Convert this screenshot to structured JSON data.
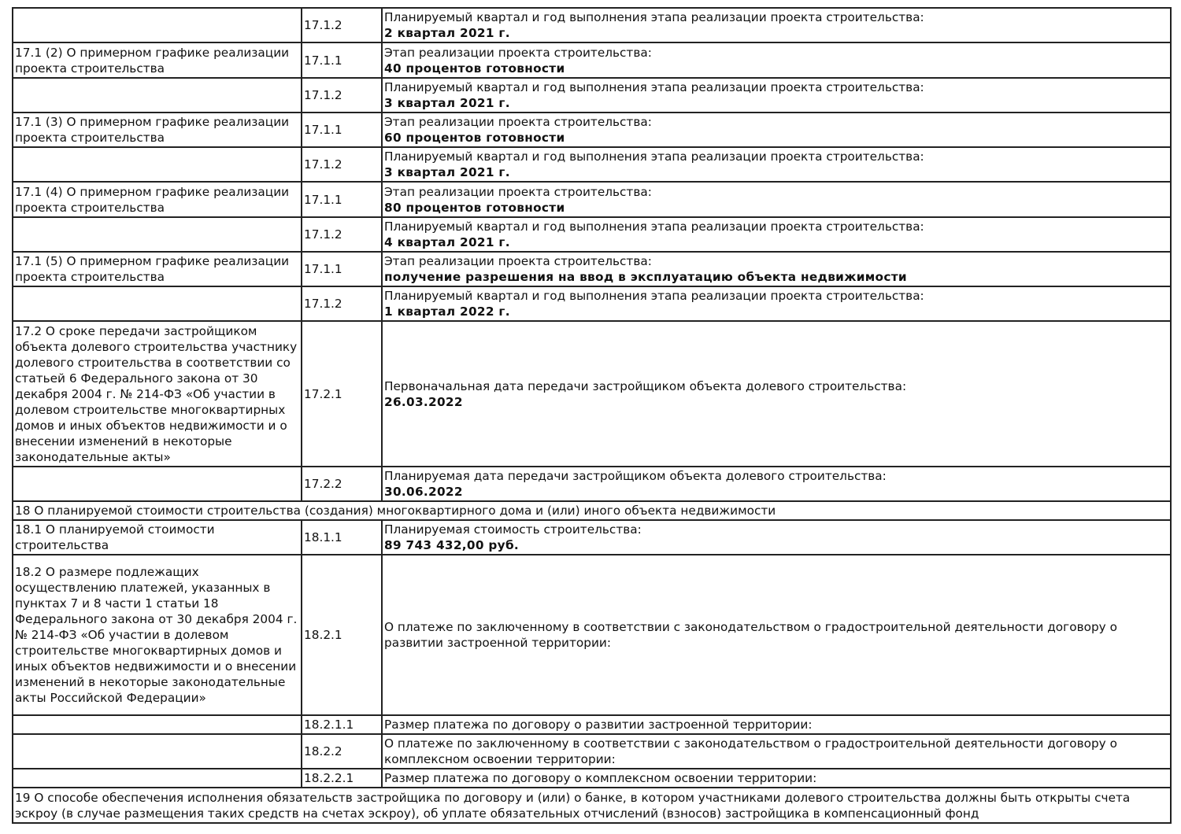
{
  "rows": [
    {
      "section": "",
      "code": "17.1.2",
      "label": "Планируемый квартал и год выполнения этапа реализации проекта строительства:",
      "value": "2 квартал 2021 г."
    },
    {
      "section": "17.1 (2) О примерном графике реализации проекта строительства",
      "code": "17.1.1",
      "label": "Этап реализации проекта строительства:",
      "value": "40 процентов готовности"
    },
    {
      "section": "",
      "code": "17.1.2",
      "label": "Планируемый квартал и год выполнения этапа реализации проекта строительства:",
      "value": "3 квартал 2021 г."
    },
    {
      "section": "17.1 (3) О примерном графике реализации проекта строительства",
      "code": "17.1.1",
      "label": "Этап реализации проекта строительства:",
      "value": "60 процентов готовности"
    },
    {
      "section": "",
      "code": "17.1.2",
      "label": "Планируемый квартал и год выполнения этапа реализации проекта строительства:",
      "value": "3 квартал 2021 г."
    },
    {
      "section": "17.1 (4) О примерном графике реализации проекта строительства",
      "code": "17.1.1",
      "label": "Этап реализации проекта строительства:",
      "value": "80 процентов готовности"
    },
    {
      "section": "",
      "code": "17.1.2",
      "label": "Планируемый квартал и год выполнения этапа реализации проекта строительства:",
      "value": "4 квартал 2021 г."
    },
    {
      "section": "17.1 (5) О примерном графике реализации проекта строительства",
      "code": "17.1.1",
      "label": "Этап реализации проекта строительства:",
      "value": "получение разрешения на ввод в эксплуатацию объекта недвижимости"
    },
    {
      "section": "",
      "code": "17.1.2",
      "label": "Планируемый квартал и год выполнения этапа реализации проекта строительства:",
      "value": "1 квартал 2022 г."
    },
    {
      "section": "17.2 О сроке передачи застройщиком объекта долевого строительства участнику долевого строительства в соответствии со статьей 6 Федерального закона от 30 декабря 2004 г. № 214-ФЗ «Об участии в долевом строительстве многоквартирных домов и иных объектов недвижимости и о внесении изменений в некоторые законодательные акты»",
      "code": "17.2.1",
      "label": "Первоначальная дата передачи застройщиком объекта долевого строительства:",
      "value": "26.03.2022"
    },
    {
      "section": "",
      "code": "17.2.2",
      "label": "Планируемая дата передачи застройщиком объекта долевого строительства:",
      "value": "30.06.2022"
    },
    {
      "full": "18 О планируемой стоимости строительства (создания) многоквартирного дома и (или) иного объекта недвижимости"
    },
    {
      "section": "18.1 О планируемой стоимости строительства",
      "code": "18.1.1",
      "label": "Планируемая стоимость строительства:",
      "value": "89 743 432,00 руб."
    },
    {
      "section": "18.2 О размере подлежащих осуществлению платежей, указанных в пунктах 7 и 8 части 1 статьи 18 Федерального закона от 30 декабря 2004 г. № 214-ФЗ «Об участии в долевом строительстве многоквартирных домов и иных объектов недвижимости и о внесении изменений в некоторые законодательные акты Российской Федерации»",
      "code": "18.2.1",
      "label": "О платеже по заключенному в соответствии с законодательством о градостроительной деятельности договору о развитии застроенной территории:",
      "value": ""
    },
    {
      "section": "",
      "code": "18.2.1.1",
      "label": "Размер платежа по договору о развитии застроенной территории:",
      "value": ""
    },
    {
      "section": "",
      "code": "18.2.2",
      "label": "О платеже по заключенному в соответствии с законодательством о градостроительной деятельности договору о комплексном освоении территории:",
      "value": ""
    },
    {
      "section": "",
      "code": "18.2.2.1",
      "label": "Размер платежа по договору о комплексном освоении территории:",
      "value": ""
    },
    {
      "full": "19 О способе обеспечения исполнения обязательств застройщика по договору и (или) о банке, в котором участниками долевого строительства должны быть открыты счета эскроу (в случае размещения таких средств на счетах эскроу), об уплате обязательных отчислений (взносов) застройщика в компенсационный фонд"
    }
  ]
}
